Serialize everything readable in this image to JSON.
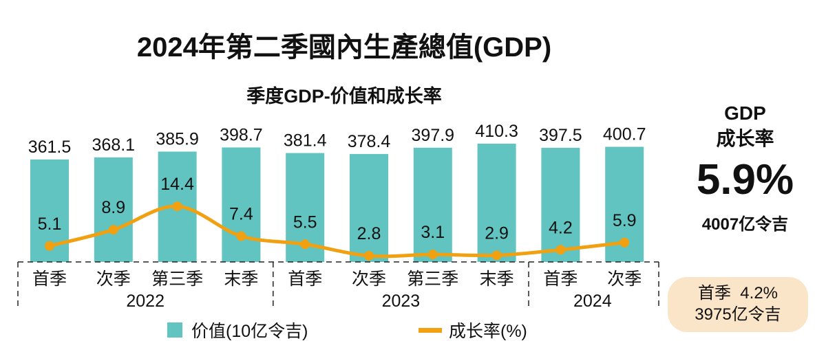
{
  "title": "2024年第二季國內生產總值(GDP)",
  "chart_data": {
    "type": "bar",
    "title": "季度GDP-价值和成长率",
    "categories": [
      "首季",
      "次季",
      "第三季",
      "末季",
      "首季",
      "次季",
      "第三季",
      "末季",
      "首季",
      "次季"
    ],
    "groups": [
      {
        "label": "2022",
        "count": 4
      },
      {
        "label": "2023",
        "count": 4
      },
      {
        "label": "2024",
        "count": 2
      }
    ],
    "series": [
      {
        "name": "价值(10亿令吉)",
        "type": "bar",
        "color": "#62c4c1",
        "values": [
          361.5,
          368.1,
          385.9,
          398.7,
          381.4,
          378.4,
          397.9,
          410.3,
          397.5,
          400.7
        ]
      },
      {
        "name": "成长率(%)",
        "type": "line",
        "color": "#f0a010",
        "values": [
          5.1,
          8.9,
          14.4,
          7.4,
          5.5,
          2.8,
          3.1,
          2.9,
          4.2,
          5.9
        ]
      }
    ],
    "xlabel": "",
    "ylabel": "",
    "legend": "bottom",
    "grid": false
  },
  "side_panel": {
    "gdp_label": "GDP",
    "rate_label": "成长率",
    "rate_value": "5.9%",
    "value_text": "4007亿令吉",
    "prev_quarter_line1": "首季  4.2%",
    "prev_quarter_line2": "3975亿令吉",
    "box_color": "#fbe5c9"
  }
}
